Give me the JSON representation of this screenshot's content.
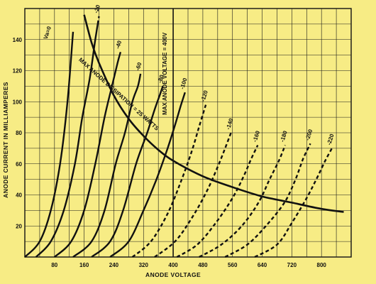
{
  "chart_data": {
    "type": "line",
    "xlabel": "ANODE VOLTAGE",
    "ylabel": "ANODE CURRENT IN MILLIAMPERES",
    "xlim": [
      0,
      880
    ],
    "ylim": [
      0,
      160
    ],
    "x_ticks": [
      80,
      160,
      240,
      320,
      400,
      480,
      560,
      640,
      720,
      800
    ],
    "y_ticks": [
      20,
      40,
      60,
      80,
      100,
      120,
      140
    ],
    "grid": true,
    "series": [
      {
        "name": "Va = 0",
        "label": "Va=0",
        "style": "solid",
        "x": [
          0,
          40,
          70,
          95,
          115,
          130
        ],
        "y": [
          0,
          10,
          30,
          60,
          100,
          145
        ]
      },
      {
        "name": "-20",
        "label": "-20",
        "style": "solid+dashed",
        "solid_until": 150,
        "x": [
          30,
          70,
          105,
          135,
          155,
          175,
          190,
          200
        ],
        "y": [
          0,
          10,
          30,
          60,
          90,
          115,
          140,
          155
        ]
      },
      {
        "name": "-40",
        "label": "-40",
        "style": "solid+dashed",
        "solid_until": 200,
        "x": [
          80,
          125,
          160,
          190,
          215,
          235,
          250,
          258
        ],
        "y": [
          0,
          10,
          30,
          60,
          90,
          110,
          125,
          132
        ]
      },
      {
        "name": "-60",
        "label": "-60",
        "style": "solid+dashed",
        "solid_until": 250,
        "x": [
          130,
          180,
          215,
          245,
          270,
          290,
          305,
          312
        ],
        "y": [
          0,
          10,
          30,
          60,
          80,
          100,
          110,
          118
        ]
      },
      {
        "name": "-80",
        "label": "-80",
        "style": "solid+dashed",
        "solid_until": 320,
        "x": [
          180,
          230,
          265,
          300,
          330,
          350,
          365,
          372
        ],
        "y": [
          0,
          10,
          30,
          60,
          80,
          95,
          105,
          110
        ]
      },
      {
        "name": "-100",
        "label": "-100",
        "style": "solid+dashed",
        "solid_until": 400,
        "x": [
          230,
          280,
          320,
          355,
          385,
          405,
          420,
          432
        ],
        "y": [
          0,
          10,
          30,
          50,
          70,
          85,
          97,
          106
        ]
      },
      {
        "name": "-120",
        "label": "-120",
        "style": "dashed",
        "x": [
          290,
          340,
          385,
          420,
          450,
          470,
          488
        ],
        "y": [
          0,
          10,
          28,
          48,
          68,
          84,
          98
        ]
      },
      {
        "name": "-140",
        "label": "-140",
        "style": "dashed",
        "x": [
          350,
          405,
          450,
          490,
          520,
          540,
          556
        ],
        "y": [
          0,
          10,
          25,
          42,
          58,
          70,
          80
        ]
      },
      {
        "name": "-160",
        "label": "-160",
        "style": "dashed",
        "x": [
          410,
          465,
          515,
          560,
          590,
          610,
          628
        ],
        "y": [
          0,
          8,
          22,
          38,
          52,
          63,
          72
        ]
      },
      {
        "name": "-180",
        "label": "-180",
        "style": "dashed",
        "x": [
          470,
          530,
          585,
          630,
          660,
          685,
          702
        ],
        "y": [
          0,
          8,
          20,
          35,
          50,
          62,
          72
        ]
      },
      {
        "name": "-200",
        "label": "-200",
        "style": "dashed",
        "x": [
          540,
          600,
          650,
          700,
          730,
          750,
          770
        ],
        "y": [
          0,
          8,
          20,
          35,
          50,
          63,
          73
        ]
      },
      {
        "name": "-220",
        "label": "-220",
        "style": "dashed",
        "x": [
          620,
          680,
          720,
          760,
          790,
          810,
          828
        ],
        "y": [
          0,
          8,
          22,
          38,
          52,
          62,
          70
        ]
      }
    ],
    "dissipation_curve": {
      "label": "MAX ANODE DISSIPATION = 25 WATTS",
      "x": [
        160,
        180,
        200,
        240,
        280,
        320,
        360,
        400,
        480,
        560,
        640,
        720,
        800,
        860
      ],
      "y": [
        156,
        138,
        125,
        104,
        89,
        78,
        69,
        62,
        52,
        45,
        39,
        35,
        31,
        29
      ]
    },
    "max_voltage_line": {
      "label": "MAX ANODE VOLTAGE = 400V",
      "x": 400
    }
  }
}
